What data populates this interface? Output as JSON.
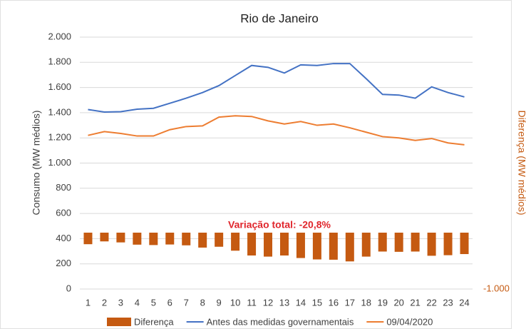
{
  "chart_data": {
    "type": "combo",
    "title": "Rio de Janeiro",
    "y_label": "Consumo (MW médios)",
    "y2_label": "Diferença (MW médios)",
    "annotation": "Variação total: -20,8%",
    "categories": [
      "1",
      "2",
      "3",
      "4",
      "5",
      "6",
      "7",
      "8",
      "9",
      "10",
      "11",
      "12",
      "13",
      "14",
      "15",
      "16",
      "17",
      "18",
      "19",
      "20",
      "21",
      "22",
      "23",
      "24"
    ],
    "series": [
      {
        "name": "Diferença",
        "type": "bar",
        "axis": "y2",
        "color": "#c55a11",
        "values": [
          -205,
          -155,
          -173,
          -213,
          -220,
          -210,
          -225,
          -265,
          -250,
          -320,
          -405,
          -425,
          -405,
          -450,
          -475,
          -480,
          -510,
          -425,
          -335,
          -340,
          -335,
          -410,
          -400,
          -380
        ]
      },
      {
        "name": "Antes das medidas governamentais",
        "type": "line",
        "color": "#4472c4",
        "values": [
          1425,
          1405,
          1408,
          1428,
          1435,
          1475,
          1515,
          1560,
          1615,
          1695,
          1775,
          1760,
          1715,
          1780,
          1775,
          1790,
          1790,
          1670,
          1545,
          1540,
          1515,
          1605,
          1560,
          1525
        ]
      },
      {
        "name": "09/04/2020",
        "type": "line",
        "color": "#ed7d31",
        "values": [
          1220,
          1250,
          1235,
          1215,
          1215,
          1265,
          1290,
          1295,
          1365,
          1375,
          1370,
          1335,
          1310,
          1330,
          1300,
          1310,
          1280,
          1245,
          1210,
          1200,
          1180,
          1195,
          1160,
          1145
        ]
      }
    ],
    "ylim": [
      0,
      2000
    ],
    "yticks": [
      0,
      200,
      400,
      600,
      800,
      {
        "value": 1000,
        "label": "1.000"
      },
      {
        "value": 1200,
        "label": "1.200"
      },
      {
        "value": 1400,
        "label": "1.400"
      },
      {
        "value": 1600,
        "label": "1.600"
      },
      {
        "value": 1800,
        "label": "1.800"
      },
      {
        "value": 2000,
        "label": "2.000"
      }
    ],
    "y2lim": [
      -1000,
      3468
    ],
    "y2ticks": [
      {
        "value": -1000,
        "label": "-1.000"
      }
    ],
    "grid": true,
    "legend": "bottom"
  }
}
